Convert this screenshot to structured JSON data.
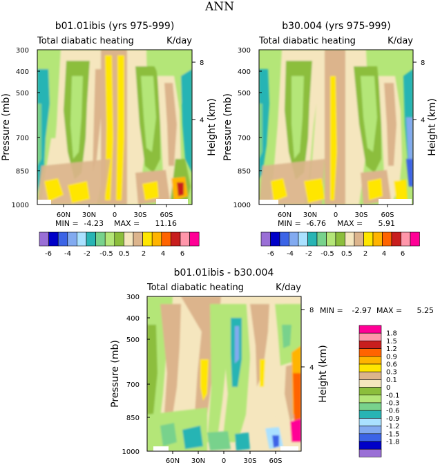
{
  "page_title": "ANN",
  "colors": {
    "diff_palette": [
      "#9a6fd6",
      "#0000c8",
      "#3c64e6",
      "#82aaf0",
      "#aae1ff",
      "#28b4b4",
      "#78d28c",
      "#b4e678",
      "#8cbe3c",
      "#f5e6be",
      "#dcb48c",
      "#ffe600",
      "#ffb400",
      "#ff6400",
      "#c81e1e",
      "#ff96aa",
      "#ff0096"
    ]
  },
  "chart_data": [
    {
      "type": "heatmap",
      "title": "b01.01ibis (yrs 975-999)",
      "subtitle_left": "Total diabatic heating",
      "subtitle_right": "K/day",
      "ylabel": "Pressure (mb)",
      "ylabel_right": "Height (km)",
      "y_ticks": [
        "300",
        "400",
        "500",
        "700",
        "850",
        "1000"
      ],
      "y_right_ticks": [
        "8",
        "4"
      ],
      "x_ticks": [
        "60N",
        "30N",
        "0",
        "30S",
        "60S"
      ],
      "min_label": "MIN =",
      "min_value": "-4.23",
      "max_label": "MAX =",
      "max_value": "11.16",
      "colorbar_labels": [
        "-6",
        "-4",
        "-2",
        "-0.5",
        "0.5",
        "2",
        "4",
        "6"
      ]
    },
    {
      "type": "heatmap",
      "title": "b30.004 (yrs 975-999)",
      "subtitle_left": "Total diabatic heating",
      "subtitle_right": "K/day",
      "ylabel": "Pressure (mb)",
      "ylabel_right": "Height (km)",
      "y_ticks": [
        "300",
        "400",
        "500",
        "700",
        "850",
        "1000"
      ],
      "y_right_ticks": [
        "8",
        "4"
      ],
      "x_ticks": [
        "60N",
        "30N",
        "0",
        "30S",
        "60S"
      ],
      "min_label": "MIN =",
      "min_value": "-6.76",
      "max_label": "MAX =",
      "max_value": "5.91",
      "colorbar_labels": [
        "-6",
        "-4",
        "-2",
        "-0.5",
        "0.5",
        "2",
        "4",
        "6"
      ]
    },
    {
      "type": "heatmap",
      "title": "b01.01ibis - b30.004",
      "subtitle_left": "Total diabatic heating",
      "subtitle_right": "K/day",
      "ylabel": "Pressure (mb)",
      "ylabel_right": "Height (km)",
      "y_ticks": [
        "300",
        "400",
        "500",
        "700",
        "850",
        "1000"
      ],
      "y_right_ticks": [
        "8",
        "4"
      ],
      "x_ticks": [
        "60N",
        "30N",
        "0",
        "30S",
        "60S"
      ],
      "min_label": "MIN =",
      "min_value": "-2.97",
      "max_label": "MAX =",
      "max_value": "5.25",
      "colorbar_labels": [
        "1.8",
        "1.5",
        "1.2",
        "0.9",
        "0.6",
        "0.3",
        "0.1",
        "0",
        "-0.1",
        "-0.3",
        "-0.6",
        "-0.9",
        "-1.2",
        "-1.5",
        "-1.8"
      ]
    }
  ]
}
